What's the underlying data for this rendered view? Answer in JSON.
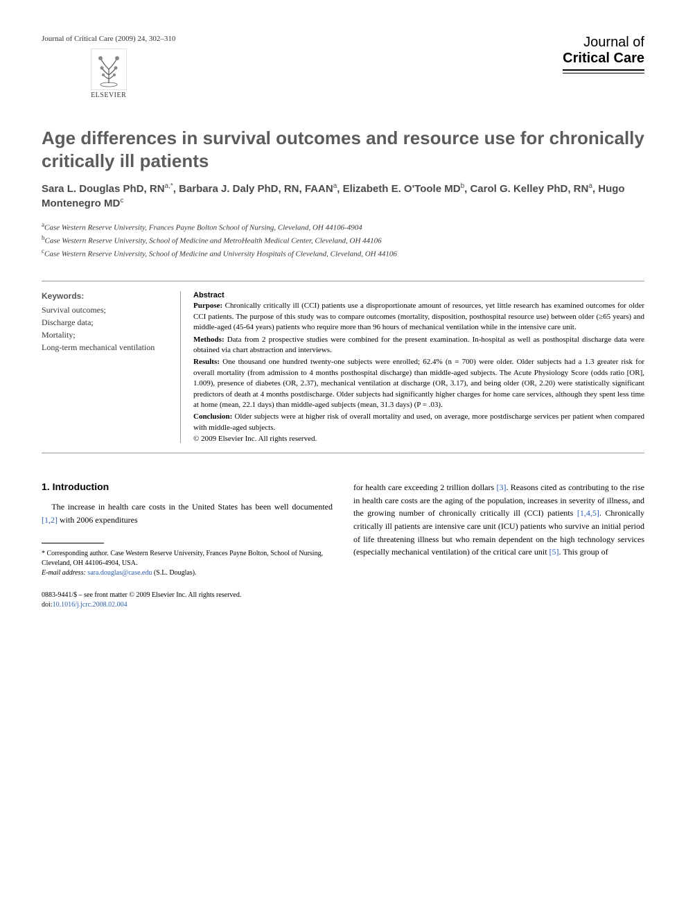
{
  "header": {
    "journal_ref": "Journal of Critical Care (2009) 24, 302–310",
    "publisher": "ELSEVIER",
    "journal_name_1": "Journal of",
    "journal_name_2": "Critical Care"
  },
  "article": {
    "title": "Age differences in survival outcomes and resource use for chronically critically ill patients",
    "authors_html": "Sara L. Douglas PhD, RN<sup>a,*</sup>, Barbara J. Daly PhD, RN, FAAN<sup>a</sup>, Elizabeth E. O'Toole MD<sup>b</sup>, Carol G. Kelley PhD, RN<sup>a</sup>, Hugo Montenegro MD<sup>c</sup>",
    "affiliations": [
      {
        "sup": "a",
        "text": "Case Western Reserve University, Frances Payne Bolton School of Nursing, Cleveland, OH 44106-4904"
      },
      {
        "sup": "b",
        "text": "Case Western Reserve University, School of Medicine and MetroHealth Medical Center, Cleveland, OH 44106"
      },
      {
        "sup": "c",
        "text": "Case Western Reserve University, School of Medicine and University Hospitals of Cleveland, Cleveland, OH 44106"
      }
    ]
  },
  "keywords": {
    "heading": "Keywords:",
    "items": "Survival outcomes;\nDischarge data;\nMortality;\nLong-term mechanical ventilation"
  },
  "abstract": {
    "heading": "Abstract",
    "purpose_label": "Purpose:",
    "purpose": "Chronically critically ill (CCI) patients use a disproportionate amount of resources, yet little research has examined outcomes for older CCI patients. The purpose of this study was to compare outcomes (mortality, disposition, posthospital resource use) between older (≥65 years) and middle-aged (45-64 years) patients who require more than 96 hours of mechanical ventilation while in the intensive care unit.",
    "methods_label": "Methods:",
    "methods": "Data from 2 prospective studies were combined for the present examination. In-hospital as well as posthospital discharge data were obtained via chart abstraction and interviews.",
    "results_label": "Results:",
    "results": "One thousand one hundred twenty-one subjects were enrolled; 62.4% (n = 700) were older. Older subjects had a 1.3 greater risk for overall mortality (from admission to 4 months posthospital discharge) than middle-aged subjects. The Acute Physiology Score (odds ratio [OR], 1.009), presence of diabetes (OR, 2.37), mechanical ventilation at discharge (OR, 3.17), and being older (OR, 2.20) were statistically significant predictors of death at 4 months postdischarge. Older subjects had significantly higher charges for home care services, although they spent less time at home (mean, 22.1 days) than middle-aged subjects (mean, 31.3 days) (P = .03).",
    "conclusion_label": "Conclusion:",
    "conclusion": "Older subjects were at higher risk of overall mortality and used, on average, more postdischarge services per patient when compared with middle-aged subjects.",
    "copyright": "© 2009 Elsevier Inc. All rights reserved."
  },
  "body": {
    "section_heading": "1. Introduction",
    "col1_para": "The increase in health care costs in the United States has been well documented ",
    "col1_ref1": "[1,2]",
    "col1_after": " with 2006 expenditures",
    "col2_para": "for health care exceeding 2 trillion dollars ",
    "col2_ref1": "[3]",
    "col2_mid1": ". Reasons cited as contributing to the rise in health care costs are the aging of the population, increases in severity of illness, and the growing number of chronically critically ill (CCI) patients ",
    "col2_ref2": "[1,4,5]",
    "col2_mid2": ". Chronically critically ill patients are intensive care unit (ICU) patients who survive an initial period of life threatening illness but who remain dependent on the high technology services (especially mechanical ventilation) of the critical care unit ",
    "col2_ref3": "[5]",
    "col2_end": ". This group of"
  },
  "footnote": {
    "corresponding": "* Corresponding author. Case Western Reserve University, Frances Payne Bolton, School of Nursing, Cleveland, OH 44106-4904, USA.",
    "email_label": "E-mail address:",
    "email": "sara.douglas@case.edu",
    "email_author": "(S.L. Douglas)."
  },
  "bottom": {
    "line1": "0883-9441/$ – see front matter © 2009 Elsevier Inc. All rights reserved.",
    "doi_label": "doi:",
    "doi": "10.1016/j.jcrc.2008.02.004"
  },
  "colors": {
    "title_gray": "#5c5c5c",
    "link_blue": "#2a5db0",
    "text": "#000000",
    "muted": "#333333"
  }
}
